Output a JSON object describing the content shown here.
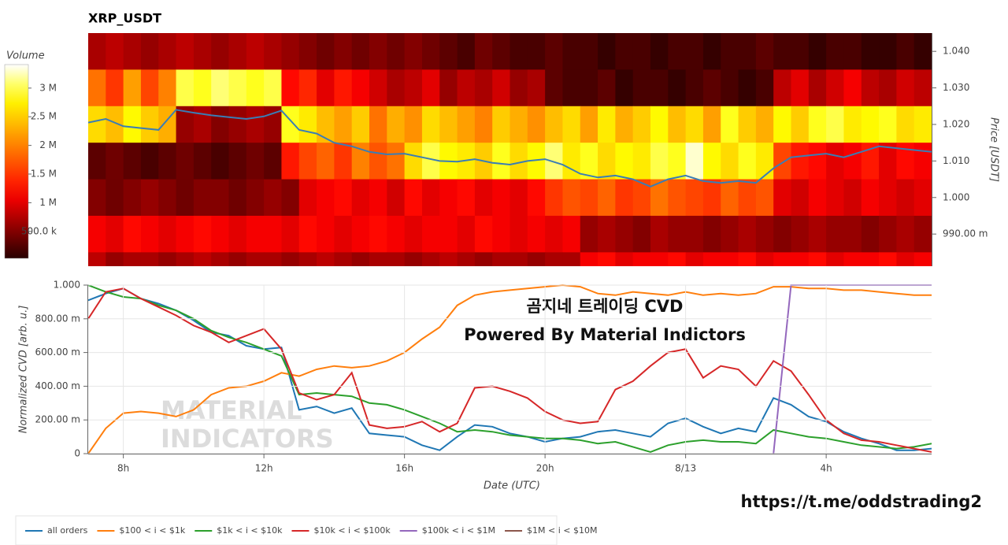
{
  "chart_data": [
    {
      "type": "heatmap",
      "title": "XRP_USDT",
      "colormap": "hot",
      "x_bins": [
        7,
        7.5,
        8,
        8.5,
        9,
        9.5,
        10,
        10.5,
        11,
        11.5,
        12,
        12.5,
        13,
        13.5,
        14,
        14.5,
        15,
        15.5,
        16,
        16.5,
        17,
        17.5,
        18,
        18.5,
        19,
        19.5,
        20,
        20.5,
        21,
        21.5,
        22,
        22.5,
        23,
        23.5,
        24,
        24.5,
        25,
        25.5,
        26,
        26.5,
        27,
        27.5,
        28,
        28.5,
        29,
        29.5,
        30,
        30.5,
        31
      ],
      "y_bins": [
        1.045,
        1.035,
        1.025,
        1.015,
        1.005,
        0.995,
        0.985,
        0.975
      ],
      "z": [
        [
          0.7,
          0.8,
          0.7,
          0.6,
          0.7,
          0.8,
          0.7,
          0.6,
          0.7,
          0.8,
          0.7,
          0.6,
          0.5,
          0.4,
          0.5,
          0.4,
          0.5,
          0.4,
          0.5,
          0.4,
          0.3,
          0.2,
          0.4,
          0.3,
          0.2,
          0.2,
          0.3,
          0.2,
          0.2,
          0.1,
          0.2,
          0.2,
          0.1,
          0.2,
          0.2,
          0.1,
          0.2,
          0.2,
          0.3,
          0.2,
          0.2,
          0.1,
          0.2,
          0.2,
          0.1,
          0.1,
          0.2,
          0.1
        ],
        [
          1.9,
          1.5,
          2.2,
          1.6,
          2.0,
          3.0,
          2.9,
          3.1,
          3.0,
          2.9,
          3.0,
          1.2,
          1.4,
          1.0,
          1.3,
          1.1,
          0.9,
          0.7,
          0.8,
          1.0,
          0.6,
          0.8,
          0.7,
          0.9,
          0.6,
          0.7,
          0.3,
          0.2,
          0.2,
          0.3,
          0.1,
          0.2,
          0.2,
          0.1,
          0.2,
          0.3,
          0.2,
          0.1,
          0.2,
          0.8,
          1.0,
          0.7,
          0.9,
          1.1,
          0.8,
          0.7,
          0.9,
          0.8
        ],
        [
          2.6,
          2.4,
          2.8,
          2.5,
          2.3,
          0.6,
          0.7,
          0.5,
          0.6,
          0.7,
          0.6,
          2.9,
          2.7,
          2.4,
          2.2,
          2.5,
          1.9,
          2.3,
          2.1,
          2.6,
          2.4,
          2.2,
          2.0,
          2.5,
          2.3,
          2.1,
          2.4,
          2.6,
          2.2,
          2.7,
          2.3,
          2.5,
          2.8,
          2.4,
          2.6,
          2.2,
          2.9,
          2.5,
          2.3,
          2.8,
          2.5,
          2.9,
          3.0,
          2.7,
          2.8,
          2.9,
          2.6,
          2.7
        ],
        [
          0.3,
          0.4,
          0.3,
          0.2,
          0.3,
          0.4,
          0.3,
          0.2,
          0.3,
          0.4,
          0.3,
          1.3,
          1.6,
          1.8,
          1.5,
          2.0,
          1.7,
          1.9,
          2.6,
          3.0,
          2.8,
          2.7,
          2.5,
          2.9,
          2.6,
          2.8,
          3.1,
          2.7,
          2.9,
          2.6,
          2.8,
          2.7,
          3.0,
          2.9,
          3.3,
          2.8,
          2.6,
          2.9,
          2.7,
          1.6,
          1.3,
          1.2,
          1.0,
          1.1,
          1.3,
          1.0,
          1.2,
          1.1
        ],
        [
          0.5,
          0.4,
          0.5,
          0.6,
          0.5,
          0.4,
          0.5,
          0.5,
          0.4,
          0.5,
          0.6,
          0.5,
          1.0,
          1.1,
          1.2,
          1.0,
          1.1,
          0.9,
          1.2,
          1.0,
          1.1,
          1.2,
          1.0,
          1.1,
          1.0,
          1.2,
          1.5,
          1.7,
          1.6,
          1.8,
          1.5,
          1.6,
          1.9,
          1.7,
          1.6,
          1.5,
          1.8,
          1.6,
          1.7,
          1.0,
          0.9,
          1.1,
          1.0,
          0.9,
          1.1,
          1.0,
          0.9,
          1.0
        ],
        [
          1.1,
          1.0,
          1.2,
          1.1,
          1.0,
          1.1,
          1.2,
          1.1,
          1.0,
          1.1,
          1.1,
          1.0,
          1.2,
          1.1,
          1.0,
          1.1,
          1.2,
          1.1,
          1.0,
          1.1,
          1.1,
          1.0,
          1.2,
          1.1,
          1.0,
          1.1,
          1.0,
          1.1,
          0.6,
          0.7,
          0.6,
          0.5,
          0.7,
          0.6,
          0.6,
          0.5,
          0.6,
          0.7,
          0.6,
          0.5,
          0.6,
          0.7,
          0.6,
          0.6,
          0.5,
          0.6,
          0.7,
          0.6
        ],
        [
          0.8,
          0.6,
          0.7,
          0.7,
          0.6,
          0.7,
          0.8,
          0.7,
          0.6,
          0.7,
          0.7,
          0.6,
          0.7,
          0.8,
          0.7,
          0.6,
          0.7,
          0.7,
          0.6,
          0.7,
          0.8,
          0.7,
          0.6,
          0.7,
          0.7,
          0.6,
          0.7,
          0.7,
          1.1,
          1.2,
          1.0,
          1.1,
          1.1,
          1.2,
          1.0,
          1.1,
          1.1,
          1.2,
          1.0,
          1.1,
          1.1,
          1.2,
          1.0,
          1.1,
          1.1,
          1.2,
          1.0,
          1.1
        ]
      ],
      "x": [
        7,
        7.5,
        8,
        8.5,
        9,
        9.5,
        10,
        10.5,
        11,
        11.5,
        12,
        12.5,
        13,
        13.5,
        14,
        14.5,
        15,
        15.5,
        16,
        16.5,
        17,
        17.5,
        18,
        18.5,
        19,
        19.5,
        20,
        20.5,
        21,
        21.5,
        22,
        22.5,
        23,
        23.5,
        24,
        24.5,
        25,
        25.5,
        26,
        26.5,
        27,
        27.5,
        28,
        28.5,
        29,
        29.5,
        30,
        30.5,
        31
      ],
      "price_line": {
        "color": "#3a7db5",
        "values": [
          1.0205,
          1.0215,
          1.0195,
          1.019,
          1.0185,
          1.024,
          1.0232,
          1.0225,
          1.022,
          1.0215,
          1.0222,
          1.0238,
          1.0185,
          1.0175,
          1.015,
          1.014,
          1.0125,
          1.0118,
          1.012,
          1.011,
          1.01,
          1.0098,
          1.0105,
          1.0095,
          1.009,
          1.01,
          1.0105,
          1.009,
          1.0065,
          1.0055,
          1.006,
          1.005,
          1.003,
          1.005,
          1.006,
          1.0045,
          1.004,
          1.0045,
          1.004,
          1.008,
          1.011,
          1.0115,
          1.012,
          1.011,
          1.0125,
          1.014,
          1.0135,
          1.013,
          1.0125
        ]
      },
      "xlim": [
        7,
        31
      ],
      "ylim": [
        0.9812,
        1.045
      ],
      "yticks": [
        {
          "value": 0.99,
          "label": "990.00 m"
        },
        {
          "value": 1,
          "label": "1.000"
        },
        {
          "value": 1.01,
          "label": "1.010"
        },
        {
          "value": 1.02,
          "label": "1.020"
        },
        {
          "value": 1.03,
          "label": "1.030"
        },
        {
          "value": 1.04,
          "label": "1.040"
        }
      ],
      "ylabel": "Price [USDT]",
      "colorbar": {
        "label": "Volume",
        "lim": [
          0.03,
          3.41
        ],
        "ticks": [
          {
            "value": 0.5,
            "label": "500.0 k"
          },
          {
            "value": 1,
            "label": "1 M"
          },
          {
            "value": 1.5,
            "label": "1.5 M"
          },
          {
            "value": 2,
            "label": "2 M"
          },
          {
            "value": 2.5,
            "label": "2.5 M"
          },
          {
            "value": 3,
            "label": "3 M"
          }
        ]
      }
    },
    {
      "type": "line",
      "grid": true,
      "x": [
        7,
        7.5,
        8,
        8.5,
        9,
        9.5,
        10,
        10.5,
        11,
        11.5,
        12,
        12.5,
        13,
        13.5,
        14,
        14.5,
        15,
        15.5,
        16,
        16.5,
        17,
        17.5,
        18,
        18.5,
        19,
        19.5,
        20,
        20.5,
        21,
        21.5,
        22,
        22.5,
        23,
        23.5,
        24,
        24.5,
        25,
        25.5,
        26,
        26.5,
        27,
        27.5,
        28,
        28.5,
        29,
        29.5,
        30,
        30.5,
        31
      ],
      "series": [
        {
          "name": "all orders",
          "color": "#1f77b4",
          "values": [
            0.91,
            0.95,
            0.98,
            0.92,
            0.89,
            0.85,
            0.79,
            0.72,
            0.7,
            0.64,
            0.62,
            0.63,
            0.26,
            0.28,
            0.24,
            0.27,
            0.12,
            0.11,
            0.1,
            0.05,
            0.02,
            0.1,
            0.17,
            0.16,
            0.12,
            0.1,
            0.07,
            0.09,
            0.1,
            0.13,
            0.14,
            0.12,
            0.1,
            0.18,
            0.21,
            0.16,
            0.12,
            0.15,
            0.13,
            0.33,
            0.29,
            0.22,
            0.19,
            0.13,
            0.09,
            0.06,
            0.02,
            0.02,
            0.03
          ]
        },
        {
          "name": "$100 < i < $1k",
          "color": "#ff7f0e",
          "values": [
            0,
            0.15,
            0.24,
            0.25,
            0.24,
            0.22,
            0.26,
            0.35,
            0.39,
            0.4,
            0.43,
            0.48,
            0.46,
            0.5,
            0.52,
            0.51,
            0.52,
            0.55,
            0.6,
            0.68,
            0.75,
            0.88,
            0.94,
            0.96,
            0.97,
            0.98,
            0.99,
            1,
            0.99,
            0.95,
            0.94,
            0.96,
            0.95,
            0.94,
            0.96,
            0.94,
            0.95,
            0.94,
            0.95,
            0.99,
            0.99,
            0.98,
            0.98,
            0.97,
            0.97,
            0.96,
            0.95,
            0.94,
            0.94
          ]
        },
        {
          "name": "$1k < i < $10k",
          "color": "#2ca02c",
          "values": [
            1,
            0.96,
            0.93,
            0.92,
            0.88,
            0.85,
            0.8,
            0.73,
            0.69,
            0.66,
            0.62,
            0.58,
            0.35,
            0.36,
            0.35,
            0.34,
            0.3,
            0.29,
            0.26,
            0.22,
            0.18,
            0.13,
            0.14,
            0.13,
            0.11,
            0.1,
            0.09,
            0.09,
            0.08,
            0.06,
            0.07,
            0.04,
            0.01,
            0.05,
            0.07,
            0.08,
            0.07,
            0.07,
            0.06,
            0.14,
            0.12,
            0.1,
            0.09,
            0.07,
            0.05,
            0.04,
            0.03,
            0.04,
            0.06
          ]
        },
        {
          "name": "$10k < i < $100k",
          "color": "#d62728",
          "values": [
            0.8,
            0.96,
            0.98,
            0.92,
            0.87,
            0.82,
            0.76,
            0.72,
            0.66,
            0.7,
            0.74,
            0.62,
            0.36,
            0.32,
            0.35,
            0.48,
            0.17,
            0.15,
            0.16,
            0.19,
            0.13,
            0.18,
            0.39,
            0.4,
            0.37,
            0.33,
            0.25,
            0.2,
            0.18,
            0.19,
            0.38,
            0.43,
            0.52,
            0.6,
            0.62,
            0.45,
            0.52,
            0.5,
            0.4,
            0.55,
            0.49,
            0.35,
            0.2,
            0.12,
            0.08,
            0.07,
            0.05,
            0.03,
            0.01
          ]
        },
        {
          "name": "$100k < i < $1M",
          "color": "#9467bd",
          "values": [
            null,
            null,
            null,
            null,
            null,
            null,
            null,
            null,
            null,
            null,
            null,
            null,
            null,
            null,
            null,
            null,
            null,
            null,
            null,
            null,
            null,
            null,
            null,
            null,
            null,
            null,
            null,
            null,
            null,
            null,
            null,
            null,
            null,
            null,
            null,
            null,
            null,
            null,
            null,
            0,
            1,
            1,
            1,
            1,
            1,
            1,
            1,
            1,
            1
          ]
        },
        {
          "name": "$1M < i < $10M",
          "color": "#8c564b",
          "values": [
            null,
            null,
            null,
            null,
            null,
            null,
            null,
            null,
            null,
            null,
            null,
            null,
            null,
            null,
            null,
            null,
            null,
            null,
            null,
            null,
            null,
            null,
            null,
            null,
            null,
            null,
            null,
            null,
            null,
            null,
            null,
            null,
            null,
            null,
            null,
            null,
            null,
            null,
            null,
            null,
            null,
            null,
            null,
            null,
            null,
            null,
            null,
            null,
            null
          ]
        }
      ],
      "xlim": [
        7,
        31
      ],
      "ylim": [
        0,
        1
      ],
      "xticks": [
        {
          "value": 8,
          "label": "8h"
        },
        {
          "value": 12,
          "label": "12h"
        },
        {
          "value": 16,
          "label": "16h"
        },
        {
          "value": 20,
          "label": "20h"
        },
        {
          "value": 24,
          "label": "8/13"
        },
        {
          "value": 28,
          "label": "4h"
        }
      ],
      "yticks": [
        0,
        {
          "value": 0.2,
          "label": "200.00 m"
        },
        {
          "value": 0.4,
          "label": "400.00 m"
        },
        {
          "value": 0.6,
          "label": "600.00 m"
        },
        {
          "value": 0.8,
          "label": "800.00 m"
        },
        {
          "value": 1,
          "label": "1.000"
        }
      ],
      "xlabel": "Date (UTC)",
      "ylabel": "Normalized CVD [arb. u.]",
      "annotations": [
        "곰지네 트레이딩 CVD",
        "Powered By Material Indictors"
      ],
      "watermark": [
        "MATERIAL",
        "INDICATORS"
      ],
      "legend": "bottom-left"
    }
  ],
  "footer_link": "https://t.me/oddstrading2"
}
